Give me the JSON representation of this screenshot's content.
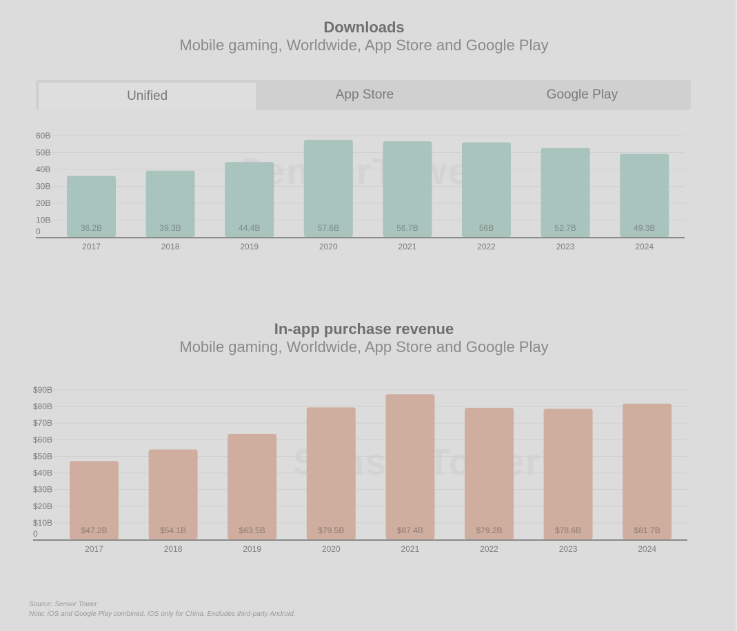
{
  "watermark": "SensorTower",
  "downloads": {
    "title": "Downloads",
    "subtitle": "Mobile gaming, Worldwide, App Store and Google Play",
    "tabs": [
      "Unified",
      "App Store",
      "Google Play"
    ],
    "active_tab": "Unified"
  },
  "revenue": {
    "title": "In-app purchase revenue",
    "subtitle": "Mobile gaming, Worldwide, App Store and Google Play"
  },
  "footnotes": {
    "source": "Source: Sensor Tower",
    "note": "Note: iOS and Google Play combined. iOS only for China. Excludes third-party Android."
  },
  "colors": {
    "downloads_bar": "#a8c4bd",
    "revenue_bar": "#cfaea0",
    "axis": "#8a8a8a",
    "grid": "#cfcfcf",
    "text": "#7a7a7a"
  },
  "chart_data": [
    {
      "type": "bar",
      "title": "Downloads",
      "subtitle": "Mobile gaming, Worldwide, App Store and Google Play",
      "categories": [
        "2017",
        "2018",
        "2019",
        "2020",
        "2021",
        "2022",
        "2023",
        "2024"
      ],
      "values": [
        36.2,
        39.3,
        44.4,
        57.6,
        56.7,
        56,
        52.7,
        49.3
      ],
      "value_labels": [
        "36.2B",
        "39.3B",
        "44.4B",
        "57.6B",
        "56.7B",
        "56B",
        "52.7B",
        "49.3B"
      ],
      "ylim": [
        0,
        60
      ],
      "yticks": [
        0,
        10,
        20,
        30,
        40,
        50,
        60
      ],
      "ytick_labels": [
        "0",
        "10B",
        "20B",
        "30B",
        "40B",
        "50B",
        "60B"
      ],
      "grid": true,
      "xlabel": "",
      "ylabel": ""
    },
    {
      "type": "bar",
      "title": "In-app purchase revenue",
      "subtitle": "Mobile gaming, Worldwide, App Store and Google Play",
      "categories": [
        "2017",
        "2018",
        "2019",
        "2020",
        "2021",
        "2022",
        "2023",
        "2024"
      ],
      "values": [
        47.2,
        54.1,
        63.5,
        79.5,
        87.4,
        79.2,
        78.6,
        81.7
      ],
      "value_labels": [
        "$47.2B",
        "$54.1B",
        "$63.5B",
        "$79.5B",
        "$87.4B",
        "$79.2B",
        "$78.6B",
        "$81.7B"
      ],
      "ylim": [
        0,
        90
      ],
      "yticks": [
        0,
        10,
        20,
        30,
        40,
        50,
        60,
        70,
        80,
        90
      ],
      "ytick_labels": [
        "0",
        "$10B",
        "$20B",
        "$30B",
        "$40B",
        "$50B",
        "$60B",
        "$70B",
        "$80B",
        "$90B"
      ],
      "grid": true,
      "xlabel": "",
      "ylabel": ""
    }
  ]
}
